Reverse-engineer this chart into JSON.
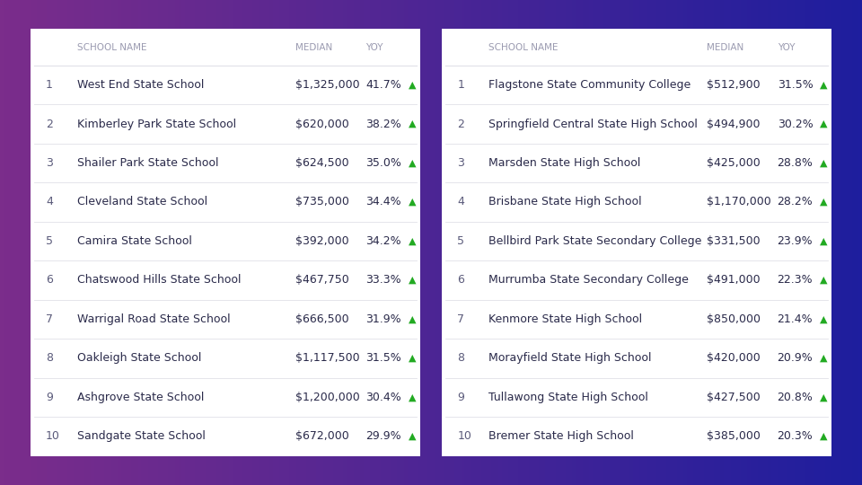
{
  "bg_left_color": "#7b2d8b",
  "bg_right_color": "#1a1a8c",
  "table_bg": "#ffffff",
  "header_text_color": "#9a9ab0",
  "rank_color": "#5a5a7a",
  "school_color": "#2a2a4a",
  "median_color": "#2a2a4a",
  "yoy_color": "#2a2a4a",
  "arrow_color": "#22aa22",
  "divider_color": "#e0e0e8",
  "header_font_size": 7.5,
  "data_font_size": 9,
  "primary": {
    "schools": [
      "West End State School",
      "Kimberley Park State School",
      "Shailer Park State School",
      "Cleveland State School",
      "Camira State School",
      "Chatswood Hills State School",
      "Warrigal Road State School",
      "Oakleigh State School",
      "Ashgrove State School",
      "Sandgate State School"
    ],
    "medians": [
      "$1,325,000",
      "$620,000",
      "$624,500",
      "$735,000",
      "$392,000",
      "$467,750",
      "$666,500",
      "$1,117,500",
      "$1,200,000",
      "$672,000"
    ],
    "yoys": [
      "41.7%",
      "38.2%",
      "35.0%",
      "34.4%",
      "34.2%",
      "33.3%",
      "31.9%",
      "31.5%",
      "30.4%",
      "29.9%"
    ]
  },
  "secondary": {
    "schools": [
      "Flagstone State Community College",
      "Springfield Central State High School",
      "Marsden State High School",
      "Brisbane State High School",
      "Bellbird Park State Secondary College",
      "Murrumba State Secondary College",
      "Kenmore State High School",
      "Morayfield State High School",
      "Tullawong State High School",
      "Bremer State High School"
    ],
    "medians": [
      "$512,900",
      "$494,900",
      "$425,000",
      "$1,170,000",
      "$331,500",
      "$491,000",
      "$850,000",
      "$420,000",
      "$427,500",
      "$385,000"
    ],
    "yoys": [
      "31.5%",
      "30.2%",
      "28.8%",
      "28.2%",
      "23.9%",
      "22.3%",
      "21.4%",
      "20.9%",
      "20.8%",
      "20.3%"
    ]
  }
}
